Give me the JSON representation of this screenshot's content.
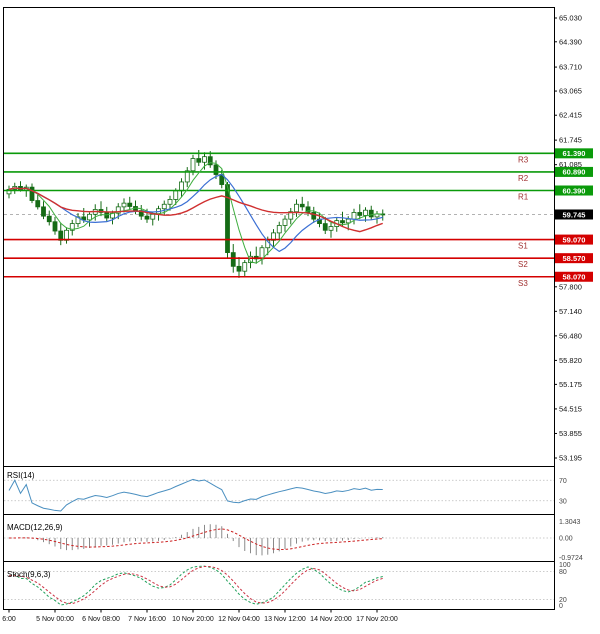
{
  "chart_data": {
    "type": "candlestick",
    "timeframe": "4h",
    "ylim": [
      53.195,
      65.03
    ],
    "grid": false,
    "price_axis_labels": [
      "65.030",
      "64.390",
      "63.710",
      "63.065",
      "62.415",
      "61.745",
      "61.085",
      "57.800",
      "57.140",
      "56.480",
      "55.820",
      "55.175",
      "54.515",
      "53.855",
      "53.195"
    ],
    "time_axis_labels": [
      "6:00",
      "5 Nov 00:00",
      "6 Nov 08:00",
      "7 Nov 16:00",
      "10 Nov 20:00",
      "12 Nov 04:00",
      "13 Nov 12:00",
      "14 Nov 20:00",
      "17 Nov 20:00"
    ],
    "levels": {
      "resistance": [
        {
          "name": "R3",
          "price": 61.39,
          "label": "61.390"
        },
        {
          "name": "R2",
          "price": 60.89,
          "label": "60.890"
        },
        {
          "name": "R1",
          "price": 60.39,
          "label": "60.390"
        }
      ],
      "support": [
        {
          "name": "S1",
          "price": 59.07,
          "label": "59.070"
        },
        {
          "name": "S2",
          "price": 58.57,
          "label": "58.570"
        },
        {
          "name": "S3",
          "price": 58.07,
          "label": "58.070"
        }
      ],
      "current_price": 59.745,
      "current_label": "59.745"
    },
    "candles": [
      [
        60.3,
        60.52,
        60.18,
        60.42
      ],
      [
        60.42,
        60.6,
        60.3,
        60.5
      ],
      [
        60.5,
        60.64,
        60.36,
        60.4
      ],
      [
        60.4,
        60.55,
        60.22,
        60.48
      ],
      [
        60.48,
        60.58,
        60.05,
        60.12
      ],
      [
        60.12,
        60.28,
        59.88,
        59.95
      ],
      [
        59.95,
        60.1,
        59.62,
        59.7
      ],
      [
        59.7,
        59.85,
        59.45,
        59.55
      ],
      [
        59.55,
        59.68,
        59.2,
        59.3
      ],
      [
        59.3,
        59.52,
        58.92,
        59.05
      ],
      [
        59.05,
        59.4,
        58.96,
        59.32
      ],
      [
        59.32,
        59.6,
        59.18,
        59.5
      ],
      [
        59.5,
        59.78,
        59.4,
        59.68
      ],
      [
        59.68,
        59.92,
        59.52,
        59.6
      ],
      [
        59.6,
        59.8,
        59.42,
        59.75
      ],
      [
        59.75,
        60.02,
        59.58,
        59.88
      ],
      [
        59.88,
        60.1,
        59.7,
        59.8
      ],
      [
        59.8,
        59.95,
        59.55,
        59.65
      ],
      [
        59.65,
        59.85,
        59.48,
        59.78
      ],
      [
        59.78,
        60.05,
        59.62,
        59.95
      ],
      [
        59.95,
        60.18,
        59.8,
        60.05
      ],
      [
        60.05,
        60.22,
        59.88,
        59.96
      ],
      [
        59.96,
        60.12,
        59.75,
        59.85
      ],
      [
        59.85,
        60.0,
        59.6,
        59.7
      ],
      [
        59.7,
        59.9,
        59.52,
        59.62
      ],
      [
        59.62,
        59.82,
        59.45,
        59.75
      ],
      [
        59.75,
        59.98,
        59.58,
        59.9
      ],
      [
        59.9,
        60.12,
        59.72,
        60.02
      ],
      [
        60.02,
        60.25,
        59.85,
        60.15
      ],
      [
        60.15,
        60.45,
        60.0,
        60.38
      ],
      [
        60.38,
        60.72,
        60.22,
        60.62
      ],
      [
        60.62,
        61.02,
        60.48,
        60.92
      ],
      [
        60.92,
        61.35,
        60.8,
        61.25
      ],
      [
        61.25,
        61.48,
        61.05,
        61.15
      ],
      [
        61.15,
        61.42,
        60.95,
        61.3
      ],
      [
        61.3,
        61.45,
        61.0,
        61.08
      ],
      [
        61.08,
        61.2,
        60.7,
        60.82
      ],
      [
        60.82,
        60.95,
        60.45,
        60.55
      ],
      [
        60.55,
        60.62,
        58.55,
        58.72
      ],
      [
        58.72,
        58.95,
        58.18,
        58.35
      ],
      [
        58.35,
        58.6,
        58.04,
        58.22
      ],
      [
        58.22,
        58.52,
        58.08,
        58.45
      ],
      [
        58.45,
        58.75,
        58.3,
        58.62
      ],
      [
        58.62,
        58.88,
        58.42,
        58.55
      ],
      [
        58.55,
        58.92,
        58.4,
        58.85
      ],
      [
        58.85,
        59.15,
        58.65,
        59.05
      ],
      [
        59.05,
        59.35,
        58.88,
        59.25
      ],
      [
        59.25,
        59.55,
        59.08,
        59.45
      ],
      [
        59.45,
        59.72,
        59.28,
        59.62
      ],
      [
        59.62,
        59.92,
        59.48,
        59.82
      ],
      [
        59.82,
        60.15,
        59.68,
        60.02
      ],
      [
        60.02,
        60.22,
        59.85,
        59.95
      ],
      [
        59.95,
        60.1,
        59.7,
        59.8
      ],
      [
        59.8,
        59.95,
        59.52,
        59.62
      ],
      [
        59.62,
        59.8,
        59.4,
        59.5
      ],
      [
        59.5,
        59.68,
        59.22,
        59.32
      ],
      [
        59.32,
        59.52,
        59.12,
        59.42
      ],
      [
        59.42,
        59.66,
        59.28,
        59.58
      ],
      [
        59.58,
        59.82,
        59.42,
        59.52
      ],
      [
        59.52,
        59.7,
        59.32,
        59.62
      ],
      [
        59.62,
        59.9,
        59.48,
        59.8
      ],
      [
        59.8,
        60.02,
        59.62,
        59.72
      ],
      [
        59.72,
        59.94,
        59.55,
        59.86
      ],
      [
        59.86,
        59.98,
        59.6,
        59.68
      ],
      [
        59.68,
        59.84,
        59.5,
        59.76
      ],
      [
        59.76,
        59.88,
        59.58,
        59.745
      ]
    ],
    "moving_averages": [
      {
        "period": 5,
        "color": "#3fae3f",
        "width": 1
      },
      {
        "period": 10,
        "color": "#3b6fd4",
        "width": 1.2
      },
      {
        "period": 24,
        "color": "#d03030",
        "width": 1.4
      }
    ],
    "indicators": {
      "rsi": {
        "label": "RSI(14)",
        "period": 14,
        "levels": [
          70,
          30
        ],
        "color": "#4a8fc0"
      },
      "macd": {
        "label": "MACD(12,26,9)",
        "fast": 12,
        "slow": 26,
        "signal": 9,
        "axis_labels": [
          "1.3043",
          "0.00",
          "-0.9724"
        ]
      },
      "stoch": {
        "label": "Stoch(9,6,3)",
        "k": 9,
        "slowing": 6,
        "d": 3,
        "levels": [
          80,
          20
        ],
        "axis_labels": [
          "100",
          "80",
          "20",
          "0"
        ]
      }
    },
    "colors": {
      "background": "#ffffff",
      "frame": "#000000",
      "resistance": "#0a9a0a",
      "support": "#d40000",
      "current_price_tag": "#000000",
      "level_text": "#a03030",
      "candle_up_fill": "#ffffff",
      "candle_down_fill": "#156b15",
      "candle_stroke": "#156b15",
      "rsi_line": "#4a8fc0",
      "macd_histogram": "#8a8a8a",
      "macd_signal": "#cc2222",
      "stoch_k": "#1fa05a",
      "stoch_d": "#cc3344",
      "axis_text": "#111111"
    }
  }
}
